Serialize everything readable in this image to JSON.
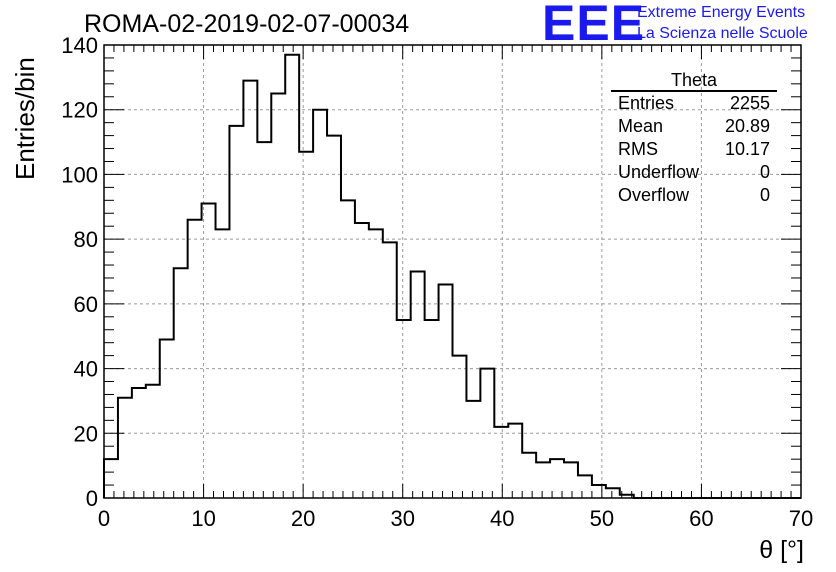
{
  "header": {
    "run_title": "ROMA-02-2019-02-07-00034",
    "logo_text": "EEE",
    "tagline_1": "Extreme Energy Events",
    "tagline_2": "La Scienza nelle Scuole",
    "brand_color": "#1a1aee"
  },
  "stats_box": {
    "title": "Theta",
    "rows": [
      {
        "label": "Entries",
        "value": "2255"
      },
      {
        "label": "Mean",
        "value": "20.89"
      },
      {
        "label": "RMS",
        "value": "10.17"
      },
      {
        "label": "Underflow",
        "value": "0"
      },
      {
        "label": "Overflow",
        "value": "0"
      }
    ]
  },
  "chart_data": {
    "type": "bar",
    "style": "step-histogram",
    "xlabel": "θ [°]",
    "ylabel": "Entries/bin",
    "xlim": [
      0,
      70
    ],
    "ylim": [
      0,
      140
    ],
    "bin_width": 1.4,
    "x_ticks": [
      0,
      10,
      20,
      30,
      40,
      50,
      60,
      70
    ],
    "y_ticks": [
      0,
      20,
      40,
      60,
      80,
      100,
      120,
      140
    ],
    "grid": true,
    "values": [
      12,
      31,
      34,
      35,
      49,
      71,
      86,
      91,
      83,
      115,
      129,
      110,
      125,
      137,
      107,
      120,
      112,
      92,
      85,
      83,
      79,
      55,
      70,
      55,
      66,
      44,
      30,
      40,
      22,
      23,
      14,
      11,
      12,
      11,
      7,
      4,
      3,
      1,
      0,
      0,
      0,
      0,
      0,
      0,
      0,
      0,
      0,
      0,
      0,
      0
    ]
  }
}
